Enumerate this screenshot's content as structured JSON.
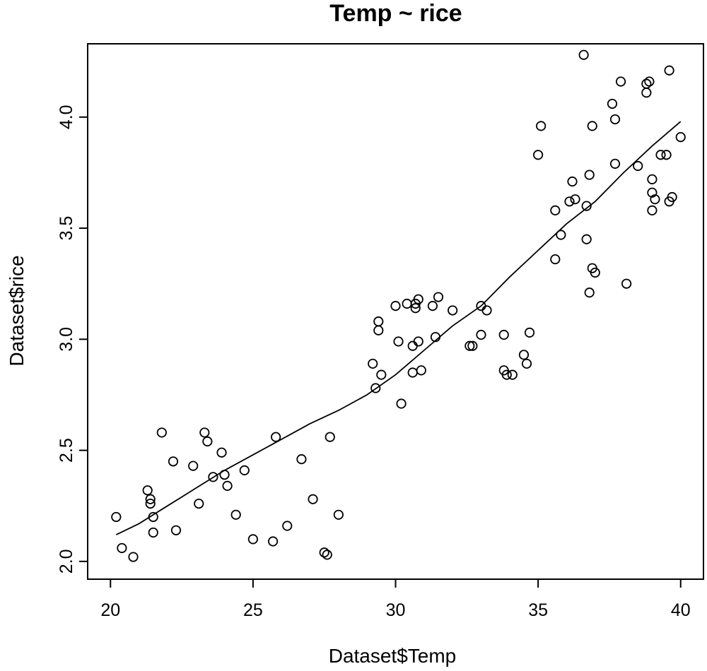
{
  "chart_data": {
    "type": "scatter",
    "title": "Temp ~ rice",
    "xlabel": "Dataset$Temp",
    "ylabel": "Dataset$rice",
    "xlim": [
      19.2,
      40.8
    ],
    "ylim": [
      1.92,
      4.33
    ],
    "x_ticks": [
      20,
      25,
      30,
      35,
      40
    ],
    "x_tick_labels": [
      "20",
      "25",
      "30",
      "35",
      "40"
    ],
    "y_ticks": [
      2.0,
      2.5,
      3.0,
      3.5,
      4.0
    ],
    "y_tick_labels": [
      "2.0",
      "2.5",
      "3.0",
      "3.5",
      "4.0"
    ],
    "grid": false,
    "series": [
      {
        "name": "points",
        "x": [
          20.2,
          20.4,
          20.8,
          21.3,
          21.4,
          21.4,
          21.5,
          21.5,
          21.8,
          22.2,
          22.3,
          22.9,
          23.1,
          23.3,
          23.4,
          23.6,
          23.9,
          24.0,
          24.1,
          24.4,
          24.7,
          25.0,
          25.7,
          25.8,
          26.2,
          26.7,
          27.1,
          27.5,
          27.6,
          27.7,
          28.0,
          29.2,
          29.3,
          29.4,
          29.4,
          29.5,
          30.0,
          30.1,
          30.2,
          30.4,
          30.6,
          30.6,
          30.7,
          30.7,
          30.8,
          30.8,
          30.9,
          31.3,
          31.4,
          31.5,
          32.0,
          32.6,
          32.7,
          33.0,
          33.0,
          33.2,
          33.8,
          33.8,
          33.9,
          34.1,
          34.5,
          34.6,
          34.7,
          35.0,
          35.1,
          35.6,
          35.6,
          35.8,
          36.1,
          36.2,
          36.3,
          36.6,
          36.7,
          36.7,
          36.8,
          36.8,
          36.9,
          36.9,
          37.0,
          37.6,
          37.7,
          37.7,
          37.9,
          38.1,
          38.5,
          38.8,
          38.8,
          38.9,
          39.0,
          39.0,
          39.0,
          39.1,
          39.3,
          39.5,
          39.6,
          39.6,
          39.7,
          40.0
        ],
        "y": [
          2.2,
          2.06,
          2.02,
          2.32,
          2.28,
          2.26,
          2.2,
          2.13,
          2.58,
          2.45,
          2.14,
          2.43,
          2.26,
          2.58,
          2.54,
          2.38,
          2.49,
          2.39,
          2.34,
          2.21,
          2.41,
          2.1,
          2.09,
          2.56,
          2.16,
          2.46,
          2.28,
          2.04,
          2.03,
          2.56,
          2.21,
          2.89,
          2.78,
          3.08,
          3.04,
          2.84,
          3.15,
          2.99,
          2.71,
          3.16,
          2.97,
          2.85,
          3.14,
          3.16,
          3.18,
          2.99,
          2.86,
          3.15,
          3.01,
          3.19,
          3.13,
          2.97,
          2.97,
          3.02,
          3.15,
          3.13,
          3.02,
          2.86,
          2.84,
          2.84,
          2.93,
          2.89,
          3.03,
          3.83,
          3.96,
          3.58,
          3.36,
          3.47,
          3.62,
          3.71,
          3.63,
          4.28,
          3.45,
          3.6,
          3.21,
          3.74,
          3.32,
          3.96,
          3.3,
          4.06,
          3.99,
          3.79,
          4.16,
          3.25,
          3.78,
          4.11,
          4.15,
          4.16,
          3.72,
          3.58,
          3.66,
          3.63,
          3.83,
          3.83,
          3.62,
          4.21,
          3.64,
          3.91
        ]
      },
      {
        "name": "smooth",
        "x": [
          20.2,
          21.0,
          22.0,
          23.0,
          24.0,
          25.0,
          26.0,
          27.0,
          28.0,
          29.0,
          30.0,
          31.0,
          32.0,
          33.0,
          34.0,
          35.0,
          36.0,
          37.0,
          38.0,
          39.0,
          40.0
        ],
        "y": [
          2.12,
          2.17,
          2.25,
          2.33,
          2.41,
          2.48,
          2.55,
          2.62,
          2.68,
          2.75,
          2.84,
          2.95,
          3.06,
          3.15,
          3.28,
          3.4,
          3.52,
          3.62,
          3.75,
          3.87,
          3.98
        ]
      }
    ]
  }
}
